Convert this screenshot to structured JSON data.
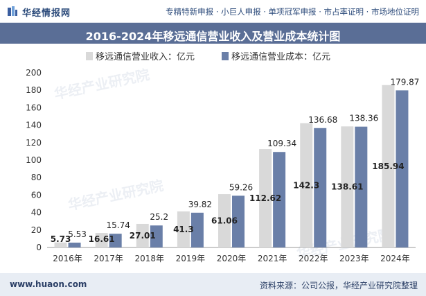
{
  "header": {
    "brand": "华经情报网",
    "services": "专精特新申报 · 小巨人申报 · 单项冠军申报 · 市占率证明 · 市场地位证明"
  },
  "colors": {
    "revenue": "#d9d9d9",
    "cost": "#6a7fa8",
    "title_bg": "#5a6e96"
  },
  "chart_data": {
    "type": "bar",
    "title": "2016-2024年移远通信营业收入及营业成本统计图",
    "categories": [
      "2016年",
      "2017年",
      "2018年",
      "2019年",
      "2020年",
      "2021年",
      "2022年",
      "2023年",
      "2024年"
    ],
    "series": [
      {
        "name": "移远通信营业收入：亿元",
        "values": [
          5.73,
          16.61,
          27.01,
          41.3,
          61.06,
          112.62,
          142.3,
          138.61,
          185.94
        ]
      },
      {
        "name": "移远通信营业成本：亿元",
        "values": [
          5.53,
          15.74,
          25.2,
          39.82,
          59.26,
          109.34,
          136.68,
          138.36,
          179.87
        ]
      }
    ],
    "yticks": [
      0,
      20,
      40,
      60,
      80,
      100,
      120,
      140,
      160,
      180,
      200
    ],
    "ylim": [
      0,
      200
    ],
    "grid": false,
    "legend": "top-center"
  },
  "watermark": "华经产业研究院",
  "footer": {
    "left": "www.huaon.com",
    "right": "资料来源：公司公报，华经产业研究院整理"
  }
}
